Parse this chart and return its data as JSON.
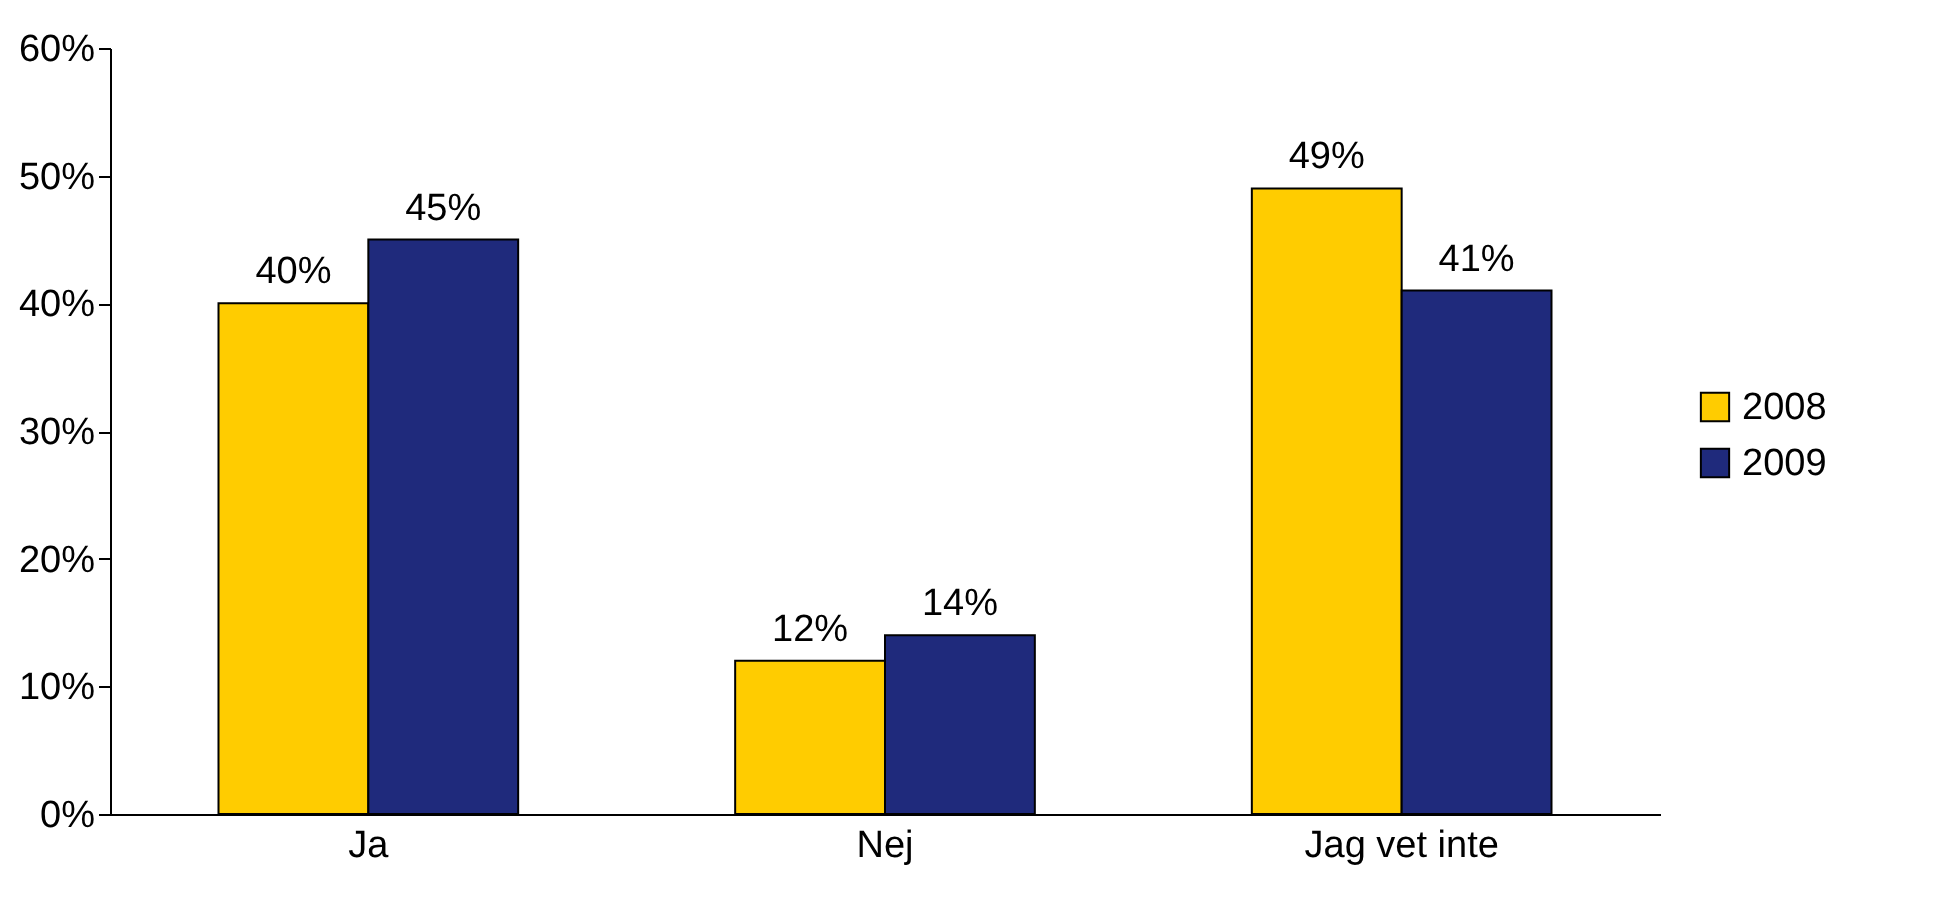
{
  "chart_data": {
    "type": "bar",
    "categories": [
      "Ja",
      "Nej",
      "Jag vet inte"
    ],
    "series": [
      {
        "name": "2008",
        "color": "#ffcc00",
        "values": [
          40,
          12,
          49
        ],
        "value_labels": [
          "40%",
          "12%",
          "49%"
        ]
      },
      {
        "name": "2009",
        "color": "#1f2a7c",
        "values": [
          45,
          14,
          41
        ],
        "value_labels": [
          "45%",
          "14%",
          "41%"
        ]
      }
    ],
    "ylim": [
      0,
      60
    ],
    "yticks": [
      {
        "value": 0,
        "label": "0%"
      },
      {
        "value": 10,
        "label": "10%"
      },
      {
        "value": 20,
        "label": "20%"
      },
      {
        "value": 30,
        "label": "30%"
      },
      {
        "value": 40,
        "label": "40%"
      },
      {
        "value": 50,
        "label": "50%"
      },
      {
        "value": 60,
        "label": "60%"
      }
    ],
    "legend": "right",
    "grid": false
  }
}
